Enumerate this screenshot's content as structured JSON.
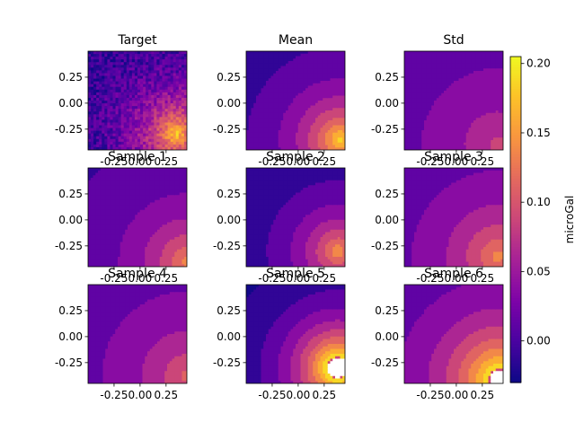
{
  "chart_data": {
    "type": "heatmap",
    "colormap": "plasma",
    "x_ticks": [
      "-0.25",
      "0.00",
      "0.25"
    ],
    "y_ticks": [
      "0.25",
      "0.00",
      "-0.25"
    ],
    "xlim": [
      -0.5,
      0.45
    ],
    "ylim": [
      -0.45,
      0.5
    ],
    "panels": [
      {
        "title": "Target",
        "kind": "noisy",
        "peak": [
          0.35,
          -0.3
        ],
        "amp": 0.2,
        "spread": 0.33,
        "floor": -0.02,
        "show_xticks": false,
        "show_yticks": true
      },
      {
        "title": "Mean",
        "kind": "contour",
        "peak": [
          0.4,
          -0.35
        ],
        "amp": 0.21,
        "spread": 0.38,
        "floor": -0.02,
        "show_xticks": false,
        "show_yticks": true
      },
      {
        "title": "Std",
        "kind": "contour",
        "peak": [
          0.4,
          -0.4
        ],
        "amp": 0.085,
        "spread": 0.6,
        "floor": 0.0,
        "show_xticks": false,
        "show_yticks": true
      },
      {
        "title": "Sample 1",
        "kind": "contour",
        "peak": [
          0.45,
          -0.4
        ],
        "amp": 0.15,
        "spread": 0.45,
        "floor": -0.01,
        "show_xticks": false,
        "show_yticks": true
      },
      {
        "title": "Sample 2",
        "kind": "contour",
        "peak": [
          0.38,
          -0.3
        ],
        "amp": 0.18,
        "spread": 0.38,
        "floor": -0.03,
        "show_xticks": false,
        "show_yticks": true
      },
      {
        "title": "Sample 3",
        "kind": "contour",
        "peak": [
          0.4,
          -0.35
        ],
        "amp": 0.14,
        "spread": 0.48,
        "floor": 0.0,
        "show_xticks": false,
        "show_yticks": true
      },
      {
        "title": "Sample 4",
        "kind": "contour",
        "peak": [
          0.45,
          -0.38
        ],
        "amp": 0.11,
        "spread": 0.55,
        "floor": 0.0,
        "show_xticks": true,
        "show_yticks": true
      },
      {
        "title": "Sample 5",
        "kind": "contour",
        "peak": [
          0.38,
          -0.3
        ],
        "amp": 0.32,
        "spread": 0.36,
        "floor": -0.04,
        "show_xticks": true,
        "show_yticks": true
      },
      {
        "title": "Sample 6",
        "kind": "contour",
        "peak": [
          0.42,
          -0.42
        ],
        "amp": 0.26,
        "spread": 0.42,
        "floor": 0.0,
        "show_xticks": true,
        "show_yticks": true
      }
    ],
    "colorbar": {
      "label": "microGal",
      "vmin": -0.03,
      "vmax": 0.205,
      "ticks": [
        "0.00",
        "0.05",
        "0.10",
        "0.15",
        "0.20"
      ],
      "tick_values": [
        0.0,
        0.05,
        0.1,
        0.15,
        0.2
      ]
    },
    "contour_levels": [
      -0.025,
      0.0,
      0.025,
      0.05,
      0.075,
      0.1,
      0.125,
      0.15,
      0.175,
      0.2
    ]
  }
}
